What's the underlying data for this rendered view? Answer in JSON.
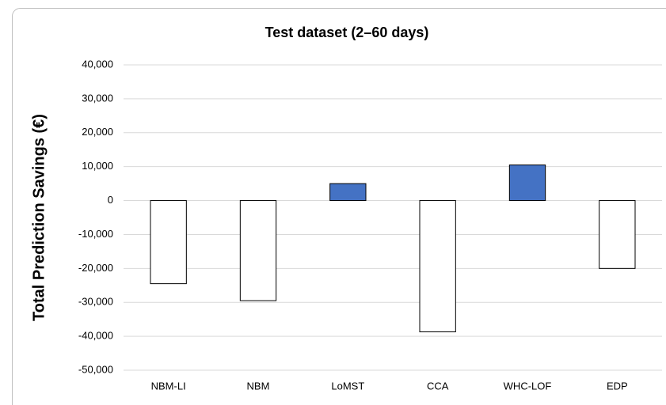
{
  "chart_data": {
    "type": "bar",
    "title": "Test dataset (2–60 days)",
    "y_label": "Total Prediction Savings (€)",
    "categories": [
      "NBM-LI",
      "NBM",
      "LoMST",
      "CCA",
      "WHC-LOF",
      "EDP"
    ],
    "values": [
      -24500,
      -29500,
      5000,
      -38700,
      10500,
      -20000
    ],
    "colors": [
      "#ffffff",
      "#ffffff",
      "#4472c4",
      "#ffffff",
      "#4472c4",
      "#ffffff"
    ],
    "ylim": [
      -50000,
      40000
    ],
    "yticks": [
      {
        "value": -50000,
        "label": "-50,000"
      },
      {
        "value": -40000,
        "label": "-40,000"
      },
      {
        "value": -30000,
        "label": "-30,000"
      },
      {
        "value": -20000,
        "label": "-20,000"
      },
      {
        "value": -10000,
        "label": "-10,000"
      },
      0,
      {
        "value": 10000,
        "label": "10,000"
      },
      {
        "value": 20000,
        "label": "20,000"
      },
      {
        "value": 30000,
        "label": "30,000"
      },
      {
        "value": 40000,
        "label": "40,000"
      }
    ],
    "grid": true
  }
}
